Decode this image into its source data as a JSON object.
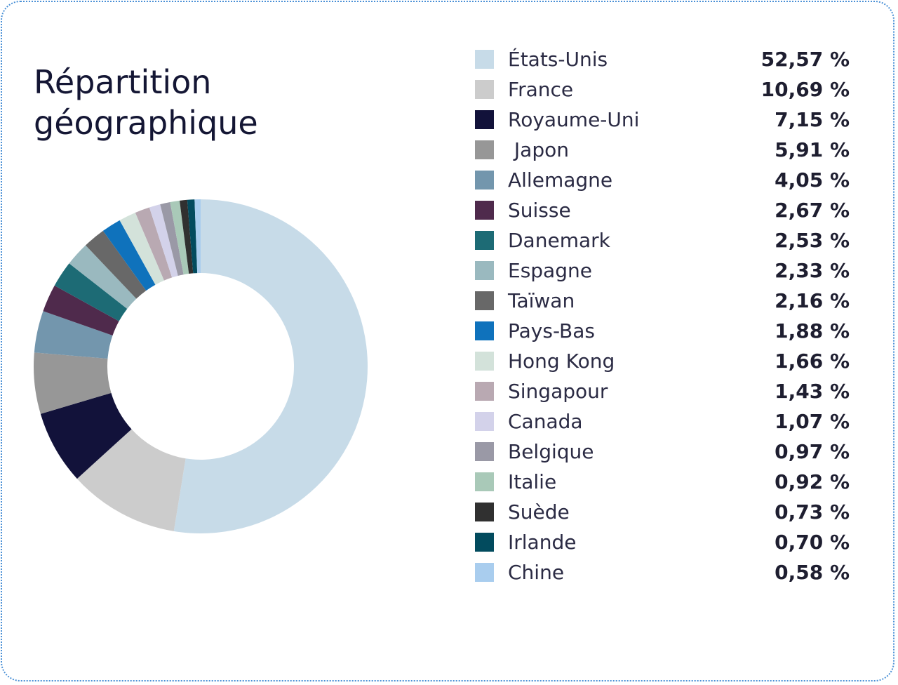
{
  "title_lines": [
    "Répartition",
    "géographique"
  ],
  "chart_data": {
    "type": "pie",
    "donut": true,
    "title": "Répartition géographique",
    "categories": [
      "États-Unis",
      "France",
      "Royaume-Uni",
      " Japon",
      "Allemagne",
      "Suisse",
      "Danemark",
      "Espagne",
      "Taïwan",
      "Pays-Bas",
      "Hong Kong",
      "Singapour",
      "Canada",
      "Belgique",
      "Italie",
      "Suède",
      "Irlande",
      "Chine"
    ],
    "values": [
      52.57,
      10.69,
      7.15,
      5.91,
      4.05,
      2.67,
      2.53,
      2.33,
      2.16,
      1.88,
      1.66,
      1.43,
      1.07,
      0.97,
      0.92,
      0.73,
      0.7,
      0.58
    ],
    "value_labels": [
      "52,57 %",
      "10,69 %",
      "7,15 %",
      "5,91 %",
      "4,05 %",
      "2,67 %",
      "2,53 %",
      "2,33 %",
      "2,16 %",
      "1,88 %",
      "1,66 %",
      "1,43 %",
      "1,07 %",
      "0,97 %",
      "0,92 %",
      "0,73 %",
      "0,70 %",
      "0,58 %"
    ],
    "colors": [
      "#c7dbe8",
      "#cccccc",
      "#12123a",
      "#979797",
      "#7396ad",
      "#4f2a4c",
      "#1d6b75",
      "#9ab9bf",
      "#686868",
      "#0f72bc",
      "#d3e2da",
      "#b9a9b2",
      "#d3d2ea",
      "#9a99a6",
      "#a9c9b8",
      "#303030",
      "#024b5e",
      "#a9cdee"
    ],
    "legend_position": "right"
  }
}
